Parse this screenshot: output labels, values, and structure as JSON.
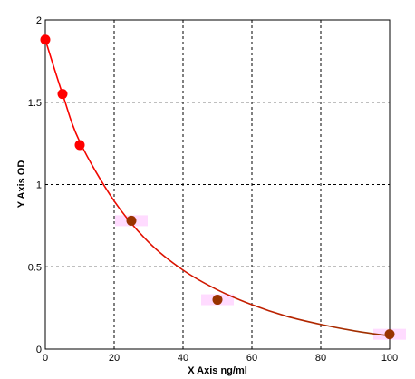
{
  "chart_data": {
    "type": "scatter",
    "title": "",
    "xlabel": "X Axis ng/ml",
    "ylabel": "Y Axis OD",
    "xlim": [
      0,
      100
    ],
    "ylim": [
      0,
      2
    ],
    "x_ticks": [
      0,
      20,
      40,
      60,
      80,
      100
    ],
    "y_ticks": [
      0,
      0.5,
      1,
      1.5,
      2
    ],
    "x_tick_labels": [
      "0",
      "20",
      "40",
      "60",
      "80",
      "100"
    ],
    "y_tick_labels": [
      "0",
      "0.5",
      "1",
      "1.5",
      "2"
    ],
    "grid": true,
    "legend": "none",
    "series": [
      {
        "type": "scatter",
        "values": [
          {
            "x": 0,
            "y": 1.88
          },
          {
            "x": 5,
            "y": 1.55
          },
          {
            "x": 10,
            "y": 1.24
          },
          {
            "x": 25,
            "y": 0.78
          },
          {
            "x": 50,
            "y": 0.3
          },
          {
            "x": 100,
            "y": 0.09
          }
        ],
        "point_colors": [
          "#ff0000",
          "#ff0000",
          "#ff0000",
          "#993300",
          "#993300",
          "#993300"
        ]
      },
      {
        "type": "line",
        "values": [
          {
            "x": 0,
            "y": 1.88
          },
          {
            "x": 5,
            "y": 1.55
          },
          {
            "x": 10,
            "y": 1.26
          },
          {
            "x": 20,
            "y": 0.9
          },
          {
            "x": 30,
            "y": 0.65
          },
          {
            "x": 40,
            "y": 0.48
          },
          {
            "x": 50,
            "y": 0.36
          },
          {
            "x": 60,
            "y": 0.27
          },
          {
            "x": 70,
            "y": 0.2
          },
          {
            "x": 80,
            "y": 0.15
          },
          {
            "x": 90,
            "y": 0.11
          },
          {
            "x": 100,
            "y": 0.08
          }
        ],
        "color_start": "#ff0000",
        "color_end": "#993300"
      }
    ],
    "colors": {
      "grid": "#000000",
      "axis": "#000000",
      "point_high": "#ff0000",
      "point_low": "#993300",
      "highlight": "#ffccff"
    }
  }
}
